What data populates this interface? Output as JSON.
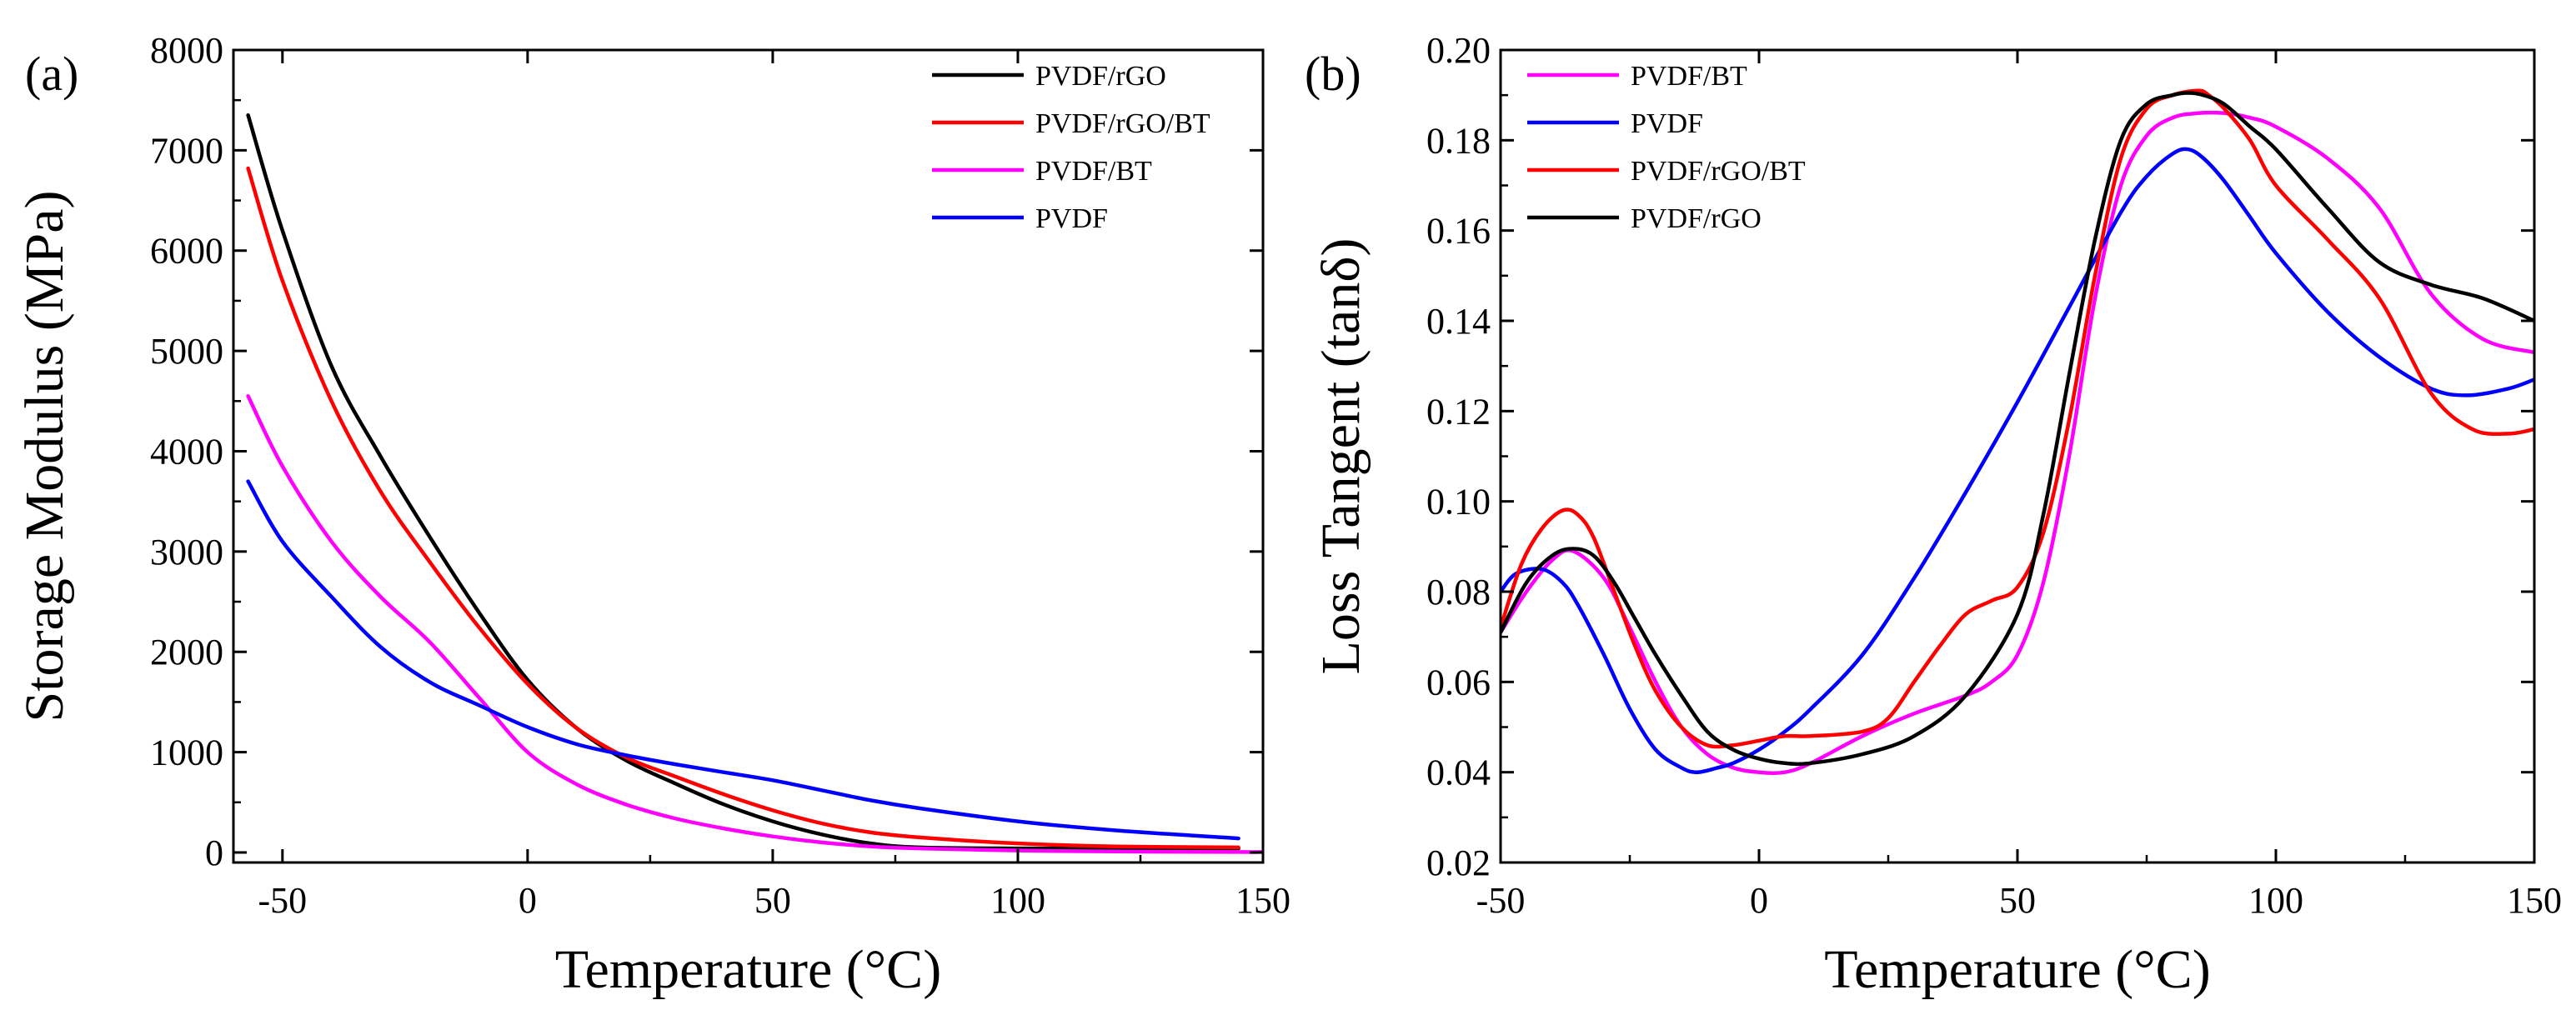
{
  "chart_data": [
    {
      "panel_label": "(a)",
      "type": "line",
      "title": "",
      "xlabel": "Temperature (°C)",
      "ylabel": "Storage Modulus (MPa)",
      "xlim": [
        -60,
        150
      ],
      "ylim": [
        -100,
        8000
      ],
      "xticks": [
        -50,
        0,
        50,
        100,
        150
      ],
      "yticks": [
        0,
        1000,
        2000,
        3000,
        4000,
        5000,
        6000,
        7000,
        8000
      ],
      "xtick_labels": [
        "-50",
        "0",
        "50",
        "100",
        "150"
      ],
      "ytick_labels": [
        "0",
        "1000",
        "2000",
        "3000",
        "4000",
        "5000",
        "6000",
        "7000",
        "8000"
      ],
      "legend_position": "top-right",
      "series": [
        {
          "name": "PVDF/rGO",
          "color": "#000000",
          "x": [
            -57,
            -50,
            -40,
            -30,
            -20,
            -10,
            0,
            10,
            20,
            30,
            40,
            50,
            60,
            70,
            80,
            100,
            120,
            145
          ],
          "y": [
            7350,
            6200,
            4850,
            3950,
            3150,
            2400,
            1720,
            1240,
            920,
            690,
            480,
            310,
            180,
            90,
            50,
            40,
            40,
            40
          ]
        },
        {
          "name": "PVDF/rGO/BT",
          "color": "#ff0000",
          "x": [
            -57,
            -50,
            -40,
            -30,
            -20,
            -10,
            0,
            10,
            20,
            30,
            40,
            50,
            60,
            70,
            80,
            100,
            120,
            145
          ],
          "y": [
            6820,
            5700,
            4500,
            3600,
            2900,
            2250,
            1680,
            1240,
            950,
            760,
            580,
            420,
            290,
            200,
            150,
            90,
            60,
            50
          ]
        },
        {
          "name": "PVDF/BT",
          "color": "#ff00ff",
          "x": [
            -57,
            -50,
            -40,
            -30,
            -20,
            -10,
            0,
            10,
            20,
            30,
            40,
            50,
            60,
            70,
            80,
            100,
            120,
            145,
            150
          ],
          "y": [
            4550,
            3850,
            3100,
            2550,
            2100,
            1550,
            1000,
            680,
            480,
            340,
            240,
            160,
            100,
            60,
            40,
            20,
            10,
            5,
            5
          ]
        },
        {
          "name": "PVDF",
          "color": "#0000ff",
          "x": [
            -57,
            -50,
            -40,
            -30,
            -20,
            -10,
            0,
            10,
            20,
            30,
            40,
            50,
            60,
            70,
            80,
            100,
            120,
            145
          ],
          "y": [
            3700,
            3100,
            2550,
            2050,
            1700,
            1470,
            1250,
            1080,
            970,
            880,
            800,
            720,
            620,
            520,
            440,
            310,
            220,
            140
          ]
        }
      ]
    },
    {
      "panel_label": "(b)",
      "type": "line",
      "title": "",
      "xlabel": "Temperature (°C)",
      "ylabel": "Loss Tangent (tanδ)",
      "xlim": [
        -50,
        150
      ],
      "ylim": [
        0.02,
        0.2
      ],
      "xticks": [
        -50,
        0,
        50,
        100,
        150
      ],
      "yticks": [
        0.02,
        0.04,
        0.06,
        0.08,
        0.1,
        0.12,
        0.14,
        0.16,
        0.18,
        0.2
      ],
      "xtick_labels": [
        "-50",
        "0",
        "50",
        "100",
        "150"
      ],
      "ytick_labels": [
        "0.02",
        "0.04",
        "0.06",
        "0.08",
        "0.10",
        "0.12",
        "0.14",
        "0.16",
        "0.18",
        "0.20"
      ],
      "legend_position": "top-left",
      "series": [
        {
          "name": "PVDF/BT",
          "color": "#ff00ff",
          "x": [
            -50,
            -45,
            -40,
            -36,
            -30,
            -25,
            -20,
            -15,
            -10,
            -5,
            0,
            5,
            10,
            20,
            30,
            40,
            45,
            50,
            55,
            60,
            65,
            70,
            75,
            80,
            85,
            90,
            95,
            100,
            110,
            120,
            130,
            140,
            150
          ],
          "y": [
            0.071,
            0.08,
            0.087,
            0.089,
            0.083,
            0.072,
            0.06,
            0.05,
            0.044,
            0.041,
            0.04,
            0.04,
            0.042,
            0.048,
            0.053,
            0.057,
            0.06,
            0.066,
            0.082,
            0.11,
            0.145,
            0.17,
            0.181,
            0.185,
            0.186,
            0.186,
            0.185,
            0.183,
            0.176,
            0.165,
            0.146,
            0.136,
            0.133
          ]
        },
        {
          "name": "PVDF",
          "color": "#0000ff",
          "x": [
            -50,
            -47,
            -42,
            -38,
            -35,
            -30,
            -25,
            -20,
            -15,
            -12,
            -8,
            -5,
            0,
            5,
            10,
            20,
            30,
            40,
            50,
            60,
            70,
            75,
            80,
            83,
            86,
            90,
            95,
            100,
            110,
            120,
            130,
            137,
            145,
            150
          ],
          "y": [
            0.08,
            0.084,
            0.085,
            0.082,
            0.077,
            0.066,
            0.054,
            0.045,
            0.041,
            0.04,
            0.041,
            0.042,
            0.045,
            0.049,
            0.054,
            0.066,
            0.083,
            0.102,
            0.122,
            0.143,
            0.164,
            0.172,
            0.177,
            0.178,
            0.176,
            0.171,
            0.163,
            0.155,
            0.142,
            0.132,
            0.125,
            0.1235,
            0.125,
            0.127
          ]
        },
        {
          "name": "PVDF/rGO/BT",
          "color": "#ff0000",
          "x": [
            -50,
            -46,
            -42,
            -38,
            -35,
            -32,
            -28,
            -24,
            -20,
            -15,
            -10,
            -5,
            0,
            5,
            10,
            20,
            25,
            30,
            35,
            40,
            45,
            50,
            55,
            60,
            65,
            70,
            75,
            80,
            85,
            87,
            90,
            95,
            100,
            110,
            120,
            130,
            138,
            145,
            150
          ],
          "y": [
            0.072,
            0.086,
            0.094,
            0.098,
            0.097,
            0.092,
            0.08,
            0.068,
            0.058,
            0.05,
            0.046,
            0.046,
            0.047,
            0.048,
            0.048,
            0.049,
            0.052,
            0.06,
            0.068,
            0.075,
            0.078,
            0.081,
            0.093,
            0.118,
            0.15,
            0.176,
            0.187,
            0.19,
            0.191,
            0.19,
            0.187,
            0.18,
            0.17,
            0.158,
            0.145,
            0.124,
            0.116,
            0.115,
            0.116
          ]
        },
        {
          "name": "PVDF/rGO",
          "color": "#000000",
          "x": [
            -50,
            -45,
            -40,
            -36,
            -32,
            -28,
            -24,
            -20,
            -15,
            -10,
            -5,
            0,
            5,
            10,
            20,
            30,
            40,
            50,
            55,
            60,
            65,
            70,
            75,
            80,
            83,
            86,
            90,
            95,
            100,
            110,
            120,
            130,
            140,
            150
          ],
          "y": [
            0.071,
            0.082,
            0.088,
            0.0895,
            0.088,
            0.082,
            0.074,
            0.066,
            0.057,
            0.049,
            0.045,
            0.043,
            0.042,
            0.042,
            0.044,
            0.048,
            0.057,
            0.075,
            0.097,
            0.128,
            0.158,
            0.18,
            0.188,
            0.19,
            0.1905,
            0.19,
            0.188,
            0.183,
            0.178,
            0.165,
            0.153,
            0.148,
            0.145,
            0.14
          ]
        }
      ]
    }
  ]
}
